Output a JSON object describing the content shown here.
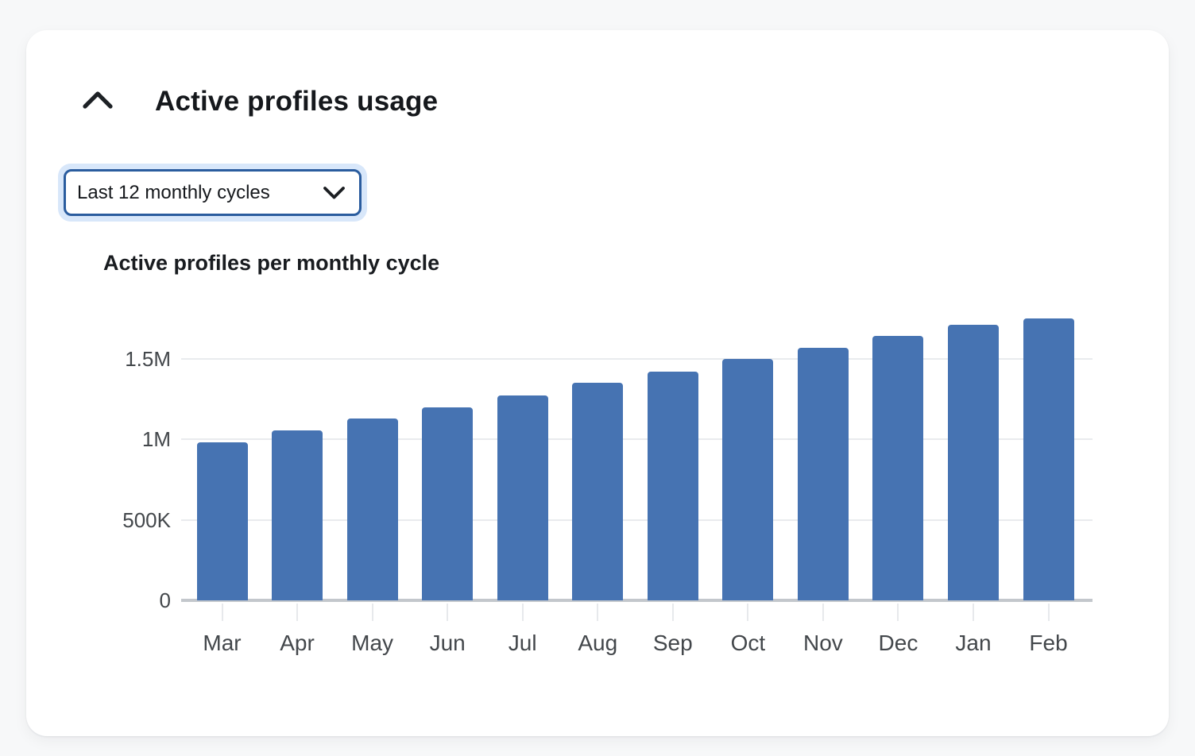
{
  "theme": {
    "page_background": "#f7f8f9",
    "card_background": "#ffffff",
    "accent_border": "#2a5c9e",
    "focus_ring": "#d8e7fa",
    "text_primary": "#15181c",
    "axis_label_color": "#43474b"
  },
  "header": {
    "title": "Active profiles usage",
    "collapse_icon": "chevron-up-icon"
  },
  "filter": {
    "value": "Last 12 monthly cycles",
    "icon": "chevron-down-icon"
  },
  "chart_data": {
    "type": "bar",
    "title": "Active profiles per monthly cycle",
    "categories": [
      "Mar",
      "Apr",
      "May",
      "Jun",
      "Jul",
      "Aug",
      "Sep",
      "Oct",
      "Nov",
      "Dec",
      "Jan",
      "Feb"
    ],
    "values": [
      980000,
      1055000,
      1130000,
      1200000,
      1275000,
      1350000,
      1420000,
      1500000,
      1570000,
      1645000,
      1715000,
      1750000
    ],
    "y_ticks": [
      {
        "label": "0",
        "value": 0
      },
      {
        "label": "500K",
        "value": 500000
      },
      {
        "label": "1M",
        "value": 1000000
      },
      {
        "label": "1.5M",
        "value": 1500000
      }
    ],
    "ylim": [
      0,
      1800000
    ],
    "xlabel": "",
    "ylabel": "",
    "grid": true,
    "legend": false,
    "bar_color": "#4673b2",
    "gridline_color": "#e9ebee",
    "baseline_color": "#c3c7cc"
  }
}
